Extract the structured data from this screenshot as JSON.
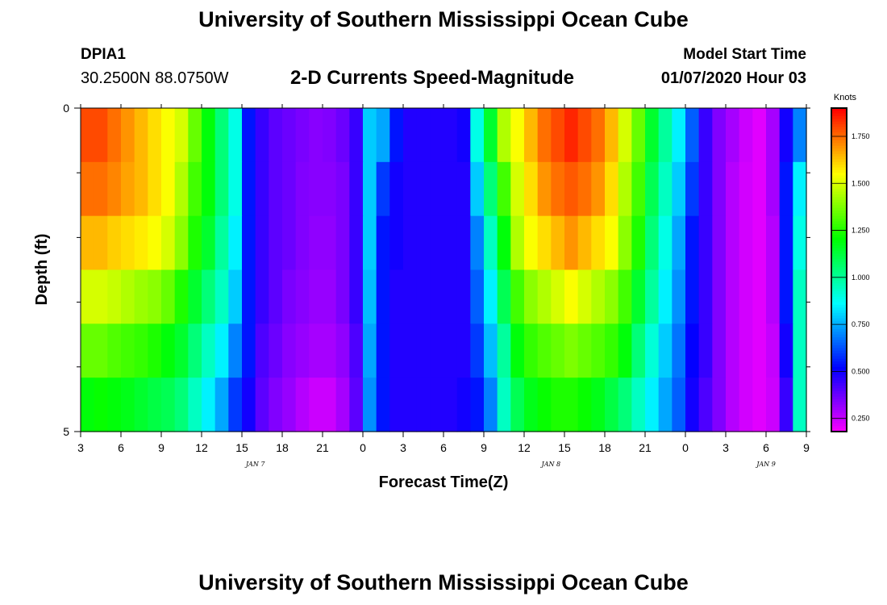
{
  "header": {
    "title": "University of Southern Mississippi Ocean Cube",
    "station_id": "DPIA1",
    "station_location": "30.2500N 88.0750W",
    "subtitle": "2-D Currents Speed-Magnitude",
    "model_start_label": "Model Start Time",
    "model_start_value": "01/07/2020 Hour 03"
  },
  "footer": {
    "title": "University of Southern Mississippi Ocean Cube"
  },
  "chart_data": {
    "type": "heatmap",
    "title": "2-D Currents Speed-Magnitude",
    "xlabel": "Forecast Time(Z)",
    "ylabel": "Depth (ft)",
    "colorbar_label": "Knots",
    "x_tick_labels": [
      "3",
      "6",
      "9",
      "12",
      "15",
      "18",
      "21",
      "0",
      "3",
      "6",
      "9",
      "12",
      "15",
      "18",
      "21",
      "0",
      "3",
      "6",
      "9"
    ],
    "day_labels": [
      {
        "label": "JAN 7",
        "at_hour": 13
      },
      {
        "label": "JAN 8",
        "at_hour": 35
      },
      {
        "label": "JAN 9",
        "at_hour": 51
      }
    ],
    "x_range_hours": [
      0,
      54
    ],
    "y_tick_labels": [
      "0",
      "5"
    ],
    "y_range_ft": [
      0,
      5
    ],
    "depth_rows_ft": [
      0,
      1,
      2,
      3,
      4,
      5
    ],
    "time_step_hours": 1,
    "color_range_knots": [
      0.18,
      1.9
    ],
    "colorbar_ticks": [
      "0.250",
      "0.500",
      "0.750",
      "1.000",
      "1.250",
      "1.500",
      "1.750"
    ],
    "colorbar_tick_values": [
      0.25,
      0.5,
      0.75,
      1.0,
      1.25,
      1.5,
      1.75
    ],
    "speed_knots_by_depth": [
      [
        1.8,
        1.8,
        1.75,
        1.7,
        1.65,
        1.6,
        1.55,
        1.5,
        1.35,
        1.2,
        1.05,
        0.9,
        0.55,
        0.45,
        0.4,
        0.38,
        0.36,
        0.34,
        0.35,
        0.38,
        0.45,
        0.8,
        0.75,
        0.55,
        0.48,
        0.48,
        0.48,
        0.48,
        0.5,
        0.9,
        1.15,
        1.45,
        1.55,
        1.65,
        1.75,
        1.8,
        1.85,
        1.8,
        1.75,
        1.65,
        1.5,
        1.35,
        1.15,
        1.0,
        0.85,
        0.65,
        0.45,
        0.35,
        0.3,
        0.25,
        0.22,
        0.3,
        0.5,
        0.7
      ],
      [
        1.75,
        1.75,
        1.72,
        1.68,
        1.65,
        1.6,
        1.55,
        1.45,
        1.3,
        1.2,
        1.05,
        0.9,
        0.55,
        0.45,
        0.4,
        0.38,
        0.35,
        0.34,
        0.34,
        0.36,
        0.45,
        0.8,
        0.6,
        0.5,
        0.48,
        0.48,
        0.48,
        0.48,
        0.48,
        0.8,
        1.05,
        1.3,
        1.5,
        1.6,
        1.7,
        1.75,
        1.78,
        1.75,
        1.7,
        1.6,
        1.45,
        1.3,
        1.1,
        0.95,
        0.8,
        0.6,
        0.45,
        0.35,
        0.28,
        0.24,
        0.22,
        0.3,
        0.55,
        0.85
      ],
      [
        1.65,
        1.65,
        1.62,
        1.6,
        1.58,
        1.55,
        1.5,
        1.4,
        1.25,
        1.15,
        1.0,
        0.85,
        0.55,
        0.45,
        0.4,
        0.38,
        0.35,
        0.33,
        0.33,
        0.36,
        0.45,
        0.8,
        0.55,
        0.5,
        0.48,
        0.48,
        0.48,
        0.48,
        0.48,
        0.7,
        0.95,
        1.2,
        1.45,
        1.55,
        1.6,
        1.65,
        1.7,
        1.65,
        1.6,
        1.55,
        1.4,
        1.25,
        1.05,
        0.9,
        0.75,
        0.55,
        0.45,
        0.35,
        0.28,
        0.24,
        0.22,
        0.28,
        0.55,
        0.9
      ],
      [
        1.5,
        1.5,
        1.48,
        1.45,
        1.42,
        1.4,
        1.35,
        1.25,
        1.15,
        1.05,
        0.95,
        0.8,
        0.55,
        0.45,
        0.4,
        0.36,
        0.34,
        0.32,
        0.32,
        0.36,
        0.45,
        0.78,
        0.55,
        0.48,
        0.48,
        0.48,
        0.48,
        0.48,
        0.48,
        0.65,
        0.85,
        1.1,
        1.3,
        1.4,
        1.45,
        1.5,
        1.55,
        1.5,
        1.45,
        1.4,
        1.3,
        1.15,
        1.0,
        0.85,
        0.72,
        0.55,
        0.45,
        0.35,
        0.28,
        0.24,
        0.22,
        0.28,
        0.55,
        0.95
      ],
      [
        1.35,
        1.35,
        1.32,
        1.3,
        1.28,
        1.25,
        1.2,
        1.15,
        1.05,
        0.95,
        0.85,
        0.7,
        0.55,
        0.42,
        0.38,
        0.34,
        0.32,
        0.3,
        0.3,
        0.33,
        0.42,
        0.75,
        0.55,
        0.48,
        0.48,
        0.48,
        0.48,
        0.48,
        0.48,
        0.6,
        0.78,
        1.0,
        1.2,
        1.28,
        1.32,
        1.35,
        1.38,
        1.35,
        1.32,
        1.28,
        1.2,
        1.05,
        0.92,
        0.8,
        0.68,
        0.52,
        0.45,
        0.35,
        0.28,
        0.24,
        0.22,
        0.26,
        0.5,
        0.95
      ],
      [
        1.2,
        1.22,
        1.2,
        1.18,
        1.15,
        1.12,
        1.1,
        1.05,
        0.95,
        0.85,
        0.75,
        0.6,
        0.5,
        0.4,
        0.35,
        0.32,
        0.28,
        0.25,
        0.25,
        0.3,
        0.4,
        0.72,
        0.55,
        0.48,
        0.48,
        0.48,
        0.48,
        0.48,
        0.5,
        0.55,
        0.7,
        0.95,
        1.1,
        1.18,
        1.22,
        1.25,
        1.25,
        1.22,
        1.18,
        1.12,
        1.05,
        0.95,
        0.85,
        0.75,
        0.65,
        0.5,
        0.42,
        0.35,
        0.28,
        0.24,
        0.22,
        0.25,
        0.45,
        0.95
      ]
    ]
  }
}
